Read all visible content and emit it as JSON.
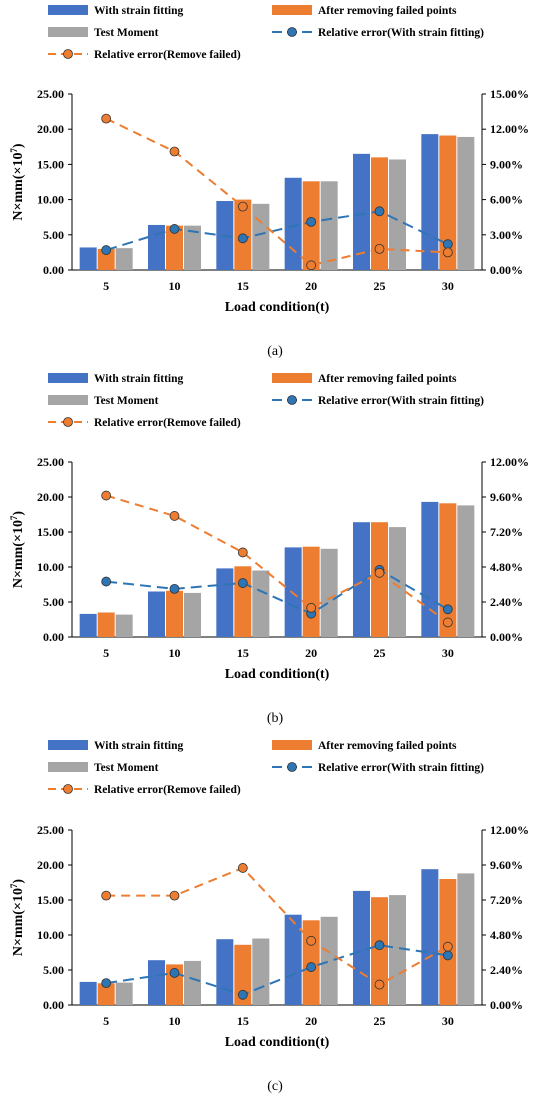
{
  "chart_data": [
    {
      "type": "bar",
      "panel_label": "(a)",
      "xlabel": "Load condition(t)",
      "ylabel_main": "N×mm(×10",
      "ylabel_sup": "7",
      "ylabel_close": ")",
      "categories": [
        "5",
        "10",
        "15",
        "20",
        "25",
        "30"
      ],
      "ylim": [
        0,
        25
      ],
      "y_ticks": [
        "0.00",
        "5.00",
        "10.00",
        "15.00",
        "20.00",
        "25.00"
      ],
      "y2lim": [
        0,
        15
      ],
      "y2_ticks": [
        "0.00%",
        "3.00%",
        "6.00%",
        "9.00%",
        "12.00%",
        "15.00%"
      ],
      "legend": [
        "With strain fitting",
        "After removing failed points",
        "Test Moment",
        "Relative error(With strain fitting)",
        "Relative error(Remove failed)"
      ],
      "series": [
        {
          "name": "With strain fitting",
          "kind": "bar",
          "axis": "left",
          "color": "#4472C4",
          "values": [
            3.2,
            6.4,
            9.8,
            13.1,
            16.5,
            19.3
          ]
        },
        {
          "name": "After removing failed points",
          "kind": "bar",
          "axis": "left",
          "color": "#ED7D31",
          "values": [
            3.0,
            6.3,
            10.0,
            12.6,
            16.0,
            19.1
          ]
        },
        {
          "name": "Test Moment",
          "kind": "bar",
          "axis": "left",
          "color": "#A5A5A5",
          "values": [
            3.1,
            6.3,
            9.4,
            12.6,
            15.7,
            18.9
          ]
        },
        {
          "name": "Relative error(With strain fitting)",
          "kind": "line",
          "axis": "right",
          "color": "#2E75B6",
          "values": [
            1.7,
            3.5,
            2.7,
            4.1,
            5.0,
            2.2
          ]
        },
        {
          "name": "Relative error(Remove failed)",
          "kind": "line",
          "axis": "right",
          "color": "#ED7D31",
          "values": [
            12.9,
            10.1,
            5.4,
            0.4,
            1.8,
            1.5
          ]
        }
      ]
    },
    {
      "type": "bar",
      "panel_label": "(b)",
      "xlabel": "Load condition(t)",
      "ylabel_main": "N×mm(×10",
      "ylabel_sup": "7",
      "ylabel_close": ")",
      "categories": [
        "5",
        "10",
        "15",
        "20",
        "25",
        "30"
      ],
      "ylim": [
        0,
        25
      ],
      "y_ticks": [
        "0.00",
        "5.00",
        "10.00",
        "15.00",
        "20.00",
        "25.00"
      ],
      "y2lim": [
        0,
        12
      ],
      "y2_ticks": [
        "0.00%",
        "2.40%",
        "4.80%",
        "7.20%",
        "9.60%",
        "12.00%"
      ],
      "legend": [
        "With strain fitting",
        "After removing failed points",
        "Test Moment",
        "Relative error(With strain fitting)",
        "Relative error(Remove failed)"
      ],
      "series": [
        {
          "name": "With strain fitting",
          "kind": "bar",
          "axis": "left",
          "color": "#4472C4",
          "values": [
            3.3,
            6.5,
            9.8,
            12.8,
            16.4,
            19.3
          ]
        },
        {
          "name": "After removing failed points",
          "kind": "bar",
          "axis": "left",
          "color": "#ED7D31",
          "values": [
            3.5,
            6.6,
            10.1,
            12.9,
            16.4,
            19.1
          ]
        },
        {
          "name": "Test Moment",
          "kind": "bar",
          "axis": "left",
          "color": "#A5A5A5",
          "values": [
            3.2,
            6.3,
            9.5,
            12.6,
            15.7,
            18.8
          ]
        },
        {
          "name": "Relative error(With strain fitting)",
          "kind": "line",
          "axis": "right",
          "color": "#2E75B6",
          "values": [
            3.8,
            3.3,
            3.7,
            1.6,
            4.6,
            1.9
          ]
        },
        {
          "name": "Relative error(Remove failed)",
          "kind": "line",
          "axis": "right",
          "color": "#ED7D31",
          "values": [
            9.7,
            8.3,
            5.8,
            2.0,
            4.4,
            1.0
          ]
        }
      ]
    },
    {
      "type": "bar",
      "panel_label": "(c)",
      "xlabel": "Load condition(t)",
      "ylabel_main": "N×mm(×10",
      "ylabel_sup": "7",
      "ylabel_close": ")",
      "categories": [
        "5",
        "10",
        "15",
        "20",
        "25",
        "30"
      ],
      "ylim": [
        0,
        25
      ],
      "y_ticks": [
        "0.00",
        "5.00",
        "10.00",
        "15.00",
        "20.00",
        "25.00"
      ],
      "y2lim": [
        0,
        12
      ],
      "y2_ticks": [
        "0.00%",
        "2.40%",
        "4.80%",
        "7.20%",
        "9.60%",
        "12.00%"
      ],
      "legend": [
        "With strain fitting",
        "After removing failed points",
        "Test Moment",
        "Relative error(With strain fitting)",
        "Relative error(Remove failed)"
      ],
      "series": [
        {
          "name": "With strain fitting",
          "kind": "bar",
          "axis": "left",
          "color": "#4472C4",
          "values": [
            3.3,
            6.4,
            9.4,
            12.9,
            16.3,
            19.4
          ]
        },
        {
          "name": "After removing failed points",
          "kind": "bar",
          "axis": "left",
          "color": "#ED7D31",
          "values": [
            3.1,
            5.8,
            8.6,
            12.1,
            15.4,
            18.0
          ]
        },
        {
          "name": "Test Moment",
          "kind": "bar",
          "axis": "left",
          "color": "#A5A5A5",
          "values": [
            3.2,
            6.3,
            9.5,
            12.6,
            15.7,
            18.8
          ]
        },
        {
          "name": "Relative error(With strain fitting)",
          "kind": "line",
          "axis": "right",
          "color": "#2E75B6",
          "values": [
            1.5,
            2.2,
            0.7,
            2.6,
            4.1,
            3.4
          ]
        },
        {
          "name": "Relative error(Remove failed)",
          "kind": "line",
          "axis": "right",
          "color": "#ED7D31",
          "values": [
            7.5,
            7.5,
            9.4,
            4.4,
            1.4,
            4.0
          ]
        }
      ]
    }
  ]
}
